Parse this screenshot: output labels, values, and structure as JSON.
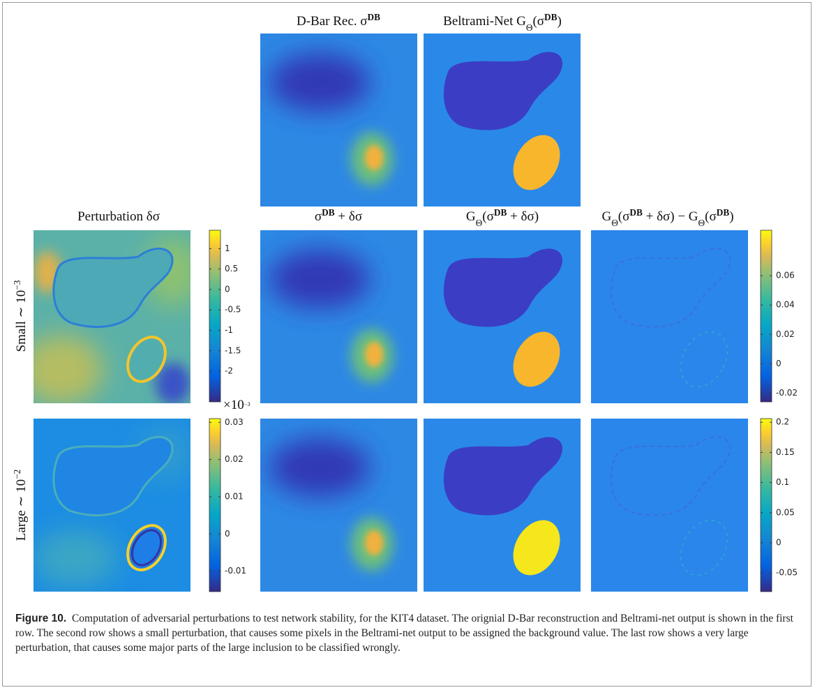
{
  "figure": {
    "top_titles": [
      [
        {
          "t": "D-Bar Rec. σ"
        },
        {
          "supb": "DB"
        }
      ],
      [
        {
          "t": "Beltrami-Net G"
        },
        {
          "sub": "Θ"
        },
        {
          "t": "(σ"
        },
        {
          "supb": "DB"
        },
        {
          "t": ")"
        }
      ]
    ],
    "column_titles": [
      [
        {
          "t": "Perturbation δσ"
        }
      ],
      [
        {
          "t": "σ"
        },
        {
          "supb": "DB"
        },
        {
          "t": " + δσ"
        }
      ],
      [
        {
          "t": "G"
        },
        {
          "sub": "Θ"
        },
        {
          "t": "(σ"
        },
        {
          "supb": "DB"
        },
        {
          "t": " + δσ)"
        }
      ],
      [
        {
          "t": "G"
        },
        {
          "sub": "Θ"
        },
        {
          "t": "(σ"
        },
        {
          "supb": "DB"
        },
        {
          "t": " + δσ) − G"
        },
        {
          "sub": "Θ"
        },
        {
          "t": "(σ"
        },
        {
          "supb": "DB"
        },
        {
          "t": ")"
        }
      ]
    ],
    "row_labels": [
      [
        {
          "t": "Small ∼ 10"
        },
        {
          "sup": "−3"
        }
      ],
      [
        {
          "t": "Large ∼ 10"
        },
        {
          "sup": "−2"
        }
      ]
    ],
    "colorbars": [
      {
        "lim": [
          -2.75,
          1.45
        ],
        "ticks": [
          1,
          0.5,
          0,
          -0.5,
          -1,
          -1.5,
          -2
        ]
      },
      {
        "lim": [
          -0.026,
          0.091
        ],
        "ticks": [
          0.06,
          0.04,
          0.02,
          0,
          -0.02
        ]
      },
      {
        "lim": [
          -0.0155,
          0.031
        ],
        "ticks": [
          0.03,
          0.02,
          0.01,
          0,
          -0.01
        ],
        "exponent": [
          {
            "t": "×10"
          },
          {
            "sup": "−3"
          }
        ]
      },
      {
        "lim": [
          -0.081,
          0.206
        ],
        "ticks": [
          0.2,
          0.15,
          0.1,
          0.05,
          0,
          -0.05
        ]
      }
    ]
  },
  "caption": {
    "label": "Figure 10.",
    "text": "Computation of adversarial perturbations to test network stability, for the KIT4 dataset. The orignial D-Bar reconstruction and Beltrami-net output is shown in the first row. The second row shows a small perturbation, that causes some pixels in the Beltrami-net output to be assigned the background value. The last row shows a very large perturbation, that causes some major parts of the large inclusion to be classified wrongly."
  }
}
